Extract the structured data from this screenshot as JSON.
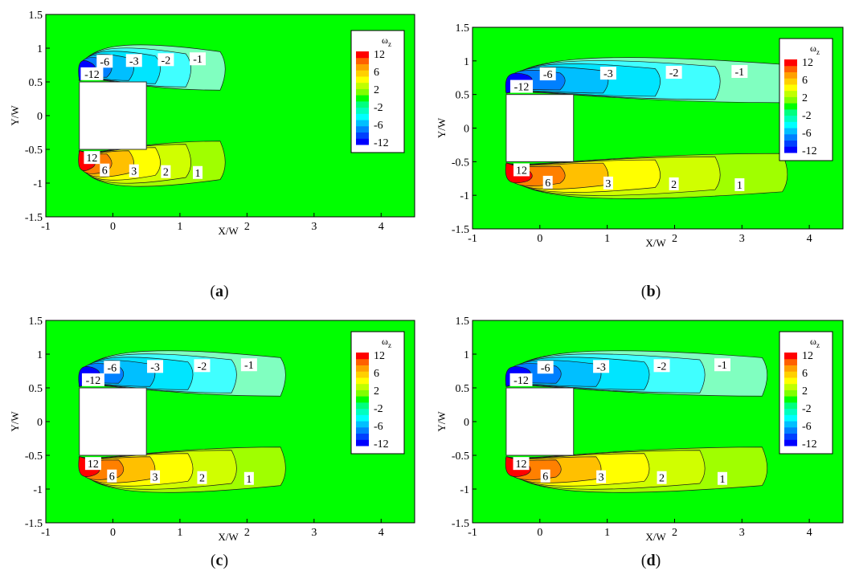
{
  "colorbar": {
    "title": "ω",
    "title_sub": "z",
    "labels": [
      "12",
      "6",
      "2",
      "-2",
      "-6",
      "-12"
    ],
    "colors": [
      "#0000ff",
      "#0040ff",
      "#0080ff",
      "#00bfff",
      "#00ffff",
      "#00ffbf",
      "#00ff80",
      "#00ff00",
      "#80ff00",
      "#c0ff00",
      "#ffff00",
      "#ffd000",
      "#ffa000",
      "#ff6000",
      "#ff0000"
    ]
  },
  "chart_data": [
    {
      "type": "heatmap",
      "caption": "a",
      "xlabel": "X/W",
      "ylabel": "Y/W",
      "xlim": [
        -1,
        4.5
      ],
      "ylim": [
        -1.5,
        1.5
      ],
      "xticks": [
        "-1",
        "0",
        "1",
        "2",
        "3",
        "4"
      ],
      "yticks": [
        "1.5",
        "1",
        "0.5",
        "0",
        "-0.5",
        "-1",
        "-1.5"
      ],
      "wake_extent": 1.6,
      "contour_labels": [
        "-12",
        "-6",
        "-3",
        "-2",
        "-1",
        "12",
        "6",
        "3",
        "2",
        "1"
      ]
    },
    {
      "type": "heatmap",
      "caption": "b",
      "xlabel": "X/W",
      "ylabel": "Y/W",
      "xlim": [
        -1,
        4.5
      ],
      "ylim": [
        -1.5,
        1.5
      ],
      "xticks": [
        "-1",
        "0",
        "1",
        "2",
        "3",
        "4"
      ],
      "yticks": [
        "1.5",
        "1",
        "0.5",
        "0",
        "-0.5",
        "-1",
        "-1.5"
      ],
      "wake_extent": 3.6,
      "contour_labels": [
        "-12",
        "-6",
        "-3",
        "-2",
        "-1",
        "12",
        "6",
        "3",
        "2",
        "1"
      ]
    },
    {
      "type": "heatmap",
      "caption": "c",
      "xlabel": "X/W",
      "ylabel": "Y/W",
      "xlim": [
        -1,
        4.5
      ],
      "ylim": [
        -1.5,
        1.5
      ],
      "xticks": [
        "-1",
        "0",
        "1",
        "2",
        "3",
        "4"
      ],
      "yticks": [
        "1.5",
        "1",
        "0.5",
        "0",
        "-0.5",
        "-1",
        "-1.5"
      ],
      "wake_extent": 2.5,
      "contour_labels": [
        "-12",
        "-6",
        "-3",
        "-2",
        "-1",
        "12",
        "6",
        "3",
        "2",
        "1"
      ]
    },
    {
      "type": "heatmap",
      "caption": "d",
      "xlabel": "X/W",
      "ylabel": "Y/W",
      "xlim": [
        -1,
        4.5
      ],
      "ylim": [
        -1.5,
        1.5
      ],
      "xticks": [
        "-1",
        "0",
        "1",
        "2",
        "3",
        "4"
      ],
      "yticks": [
        "1.5",
        "1",
        "0.5",
        "0",
        "-0.5",
        "-1",
        "-1.5"
      ],
      "wake_extent": 3.3,
      "contour_labels": [
        "-12",
        "-6",
        "-3",
        "-2",
        "-1",
        "12",
        "6",
        "3",
        "2",
        "1"
      ]
    }
  ]
}
